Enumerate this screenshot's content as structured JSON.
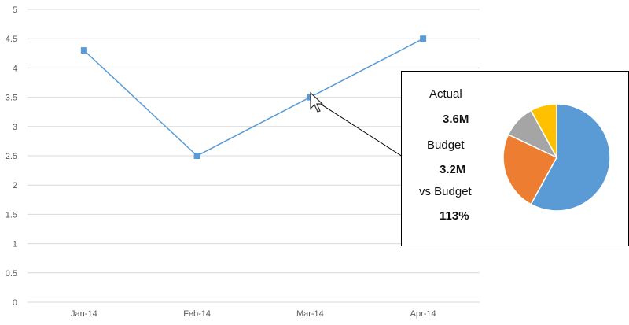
{
  "chart_data": {
    "type": "line",
    "categories": [
      "Jan-14",
      "Feb-14",
      "Mar-14",
      "Apr-14"
    ],
    "series": [
      {
        "values": [
          4.3,
          2.5,
          3.5,
          4.5
        ],
        "color": "#5b9bd5"
      }
    ],
    "ylim": [
      0,
      5
    ],
    "yticks": [
      "0",
      "0.5",
      "1",
      "1.5",
      "2",
      "2.5",
      "3",
      "3.5",
      "4",
      "4.5",
      "5"
    ],
    "grid": true,
    "title": "",
    "xlabel": "",
    "ylabel": ""
  },
  "tooltip": {
    "actual_label": "Actual",
    "actual_value": "3.6M",
    "budget_label": "Budget",
    "budget_value": "3.2M",
    "vs_label": "vs Budget",
    "vs_value": "113%",
    "pie": {
      "type": "pie",
      "slices": [
        {
          "value": 58,
          "color": "#5b9bd5"
        },
        {
          "value": 24,
          "color": "#ed7d31"
        },
        {
          "value": 10,
          "color": "#a5a5a5"
        },
        {
          "value": 8,
          "color": "#ffc000"
        }
      ]
    }
  },
  "pointer": {
    "icon": "mouse-cursor-icon"
  }
}
